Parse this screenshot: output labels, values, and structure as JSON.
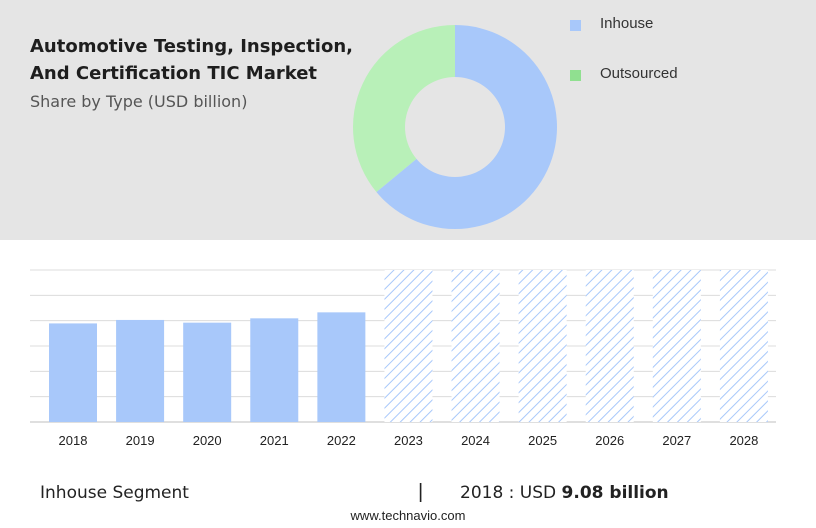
{
  "title": "Automotive Testing, Inspection, And Certification TIC Market",
  "subtitle": "Share by Type (USD billion)",
  "legend": [
    {
      "label": "Inhouse",
      "color": "#a8c8fa"
    },
    {
      "label": "Outsourced",
      "color": "#90e090"
    }
  ],
  "chart_data": [
    {
      "type": "pie",
      "labels": [
        "Inhouse",
        "Outsourced"
      ],
      "values": [
        64,
        36
      ],
      "colors": [
        "#a8c8fa",
        "#b8f0b8"
      ]
    },
    {
      "type": "bar",
      "categories": [
        "2018",
        "2019",
        "2020",
        "2021",
        "2022",
        "2023",
        "2024",
        "2025",
        "2026",
        "2027",
        "2028"
      ],
      "values": [
        9.08,
        9.4,
        9.15,
        9.55,
        10.1,
        null,
        null,
        null,
        null,
        null,
        null
      ],
      "forecast_categories": [
        "2023",
        "2024",
        "2025",
        "2026",
        "2027",
        "2028"
      ],
      "ylim": [
        0,
        14
      ],
      "grid": true,
      "bar_color": "#a8c8fa"
    }
  ],
  "footer": {
    "segment_label": "Inhouse Segment",
    "separator": "|",
    "value_prefix": "2018 : USD",
    "value_bold": "9.08 billion"
  },
  "source": "www.technavio.com"
}
